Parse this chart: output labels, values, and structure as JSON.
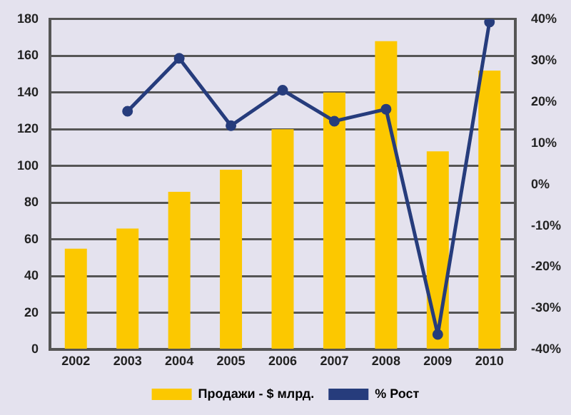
{
  "chart_data": {
    "type": "bar",
    "categories": [
      "2002",
      "2003",
      "2004",
      "2005",
      "2006",
      "2007",
      "2008",
      "2009",
      "2010"
    ],
    "series": [
      {
        "name": "Продажи - $ млрд.",
        "color": "#fcc800",
        "values": [
          55,
          66,
          86,
          98,
          120,
          140,
          168,
          108,
          152
        ]
      },
      {
        "name": "% Рост",
        "type": "line",
        "axis": "y2",
        "color": "#263c7c",
        "marker": "circle",
        "values": [
          null,
          17.7,
          30.5,
          14.2,
          22.8,
          15.3,
          18.2,
          -36.3,
          39.3
        ]
      }
    ],
    "ylim": [
      0,
      180
    ],
    "yticks": [
      0,
      20,
      40,
      60,
      80,
      100,
      120,
      140,
      160,
      180
    ],
    "y2lim": [
      -40,
      40
    ],
    "y2ticks": [
      {
        "value": -40,
        "label": "-40%"
      },
      {
        "value": -30,
        "label": "-30%"
      },
      {
        "value": -20,
        "label": "-20%"
      },
      {
        "value": -10,
        "label": "-10%"
      },
      {
        "value": 0,
        "label": "0%"
      },
      {
        "value": 10,
        "label": "10%"
      },
      {
        "value": 20,
        "label": "20%"
      },
      {
        "value": 30,
        "label": "30%"
      },
      {
        "value": 40,
        "label": "40%"
      }
    ],
    "grid": "y",
    "legend": "bottom"
  }
}
